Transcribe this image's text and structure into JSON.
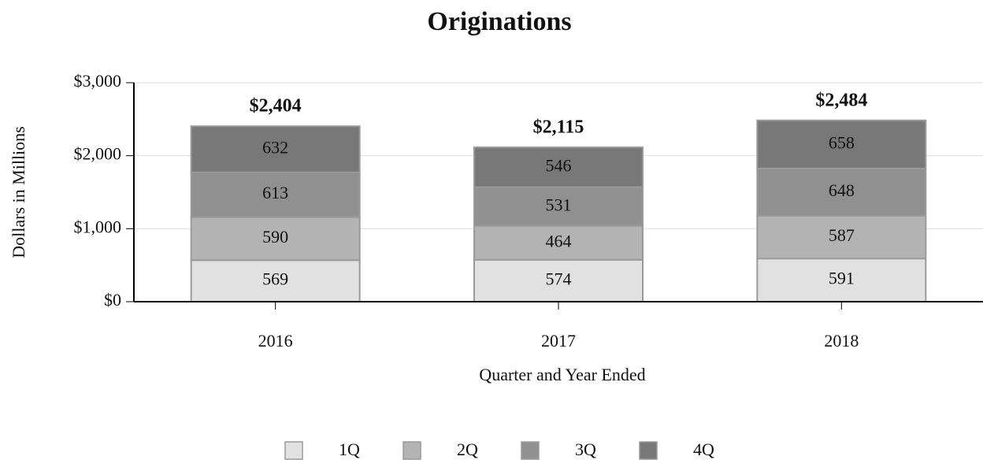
{
  "chart_data": {
    "type": "stacked_bar",
    "title": "Originations",
    "y_label": "Dollars in Millions",
    "x_label": "Quarter and Year Ended",
    "categories": [
      "2016",
      "2017",
      "2018"
    ],
    "series": [
      {
        "name": "1Q",
        "color": "#e1e1e1",
        "values": [
          569,
          574,
          591
        ]
      },
      {
        "name": "2Q",
        "color": "#b3b3b3",
        "values": [
          590,
          464,
          587
        ]
      },
      {
        "name": "3Q",
        "color": "#909090",
        "values": [
          613,
          531,
          648
        ]
      },
      {
        "name": "4Q",
        "color": "#787878",
        "values": [
          632,
          546,
          658
        ]
      }
    ],
    "total_labels": [
      "$2,404",
      "$2,115",
      "$2,484"
    ],
    "ylim": [
      0,
      3000
    ],
    "yticks": [
      {
        "value": 0,
        "label": "$0"
      },
      {
        "value": 1000,
        "label": "$1,000"
      },
      {
        "value": 2000,
        "label": "$2,000"
      },
      {
        "value": 3000,
        "label": "$3,000"
      }
    ],
    "grid": true,
    "legend": "bottom"
  }
}
